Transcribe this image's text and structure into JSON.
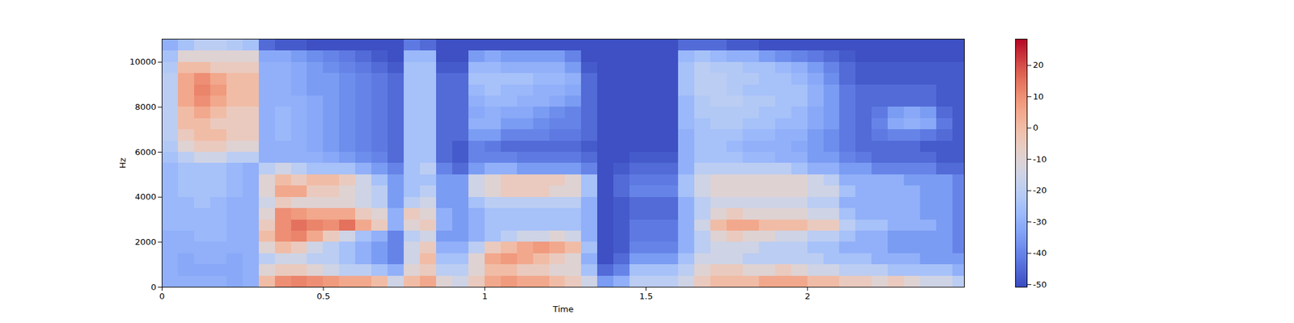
{
  "chart_data": {
    "type": "heatmap",
    "x_label": "Time",
    "y_label": "Hz",
    "xlim": [
      0,
      2.486
    ],
    "ylim": [
      0,
      11025
    ],
    "xticks": [
      0,
      0.5,
      1,
      1.5,
      2
    ],
    "yticks": [
      0,
      2000,
      4000,
      6000,
      8000,
      10000
    ],
    "x": [
      0,
      0.05,
      0.1,
      0.15,
      0.2,
      0.25,
      0.3,
      0.35,
      0.4,
      0.45,
      0.5,
      0.55,
      0.6,
      0.65,
      0.7,
      0.75,
      0.8,
      0.85,
      0.9,
      0.95,
      1,
      1.05,
      1.1,
      1.15,
      1.2,
      1.25,
      1.3,
      1.35,
      1.4,
      1.45,
      1.5,
      1.55,
      1.6,
      1.65,
      1.7,
      1.75,
      1.8,
      1.85,
      1.9,
      1.95,
      2,
      2.05,
      2.1,
      2.15,
      2.2,
      2.25,
      2.3,
      2.35,
      2.4,
      2.45
    ],
    "y": [
      0,
      500,
      1000,
      1500,
      2000,
      2500,
      3000,
      3500,
      4000,
      4500,
      5000,
      5500,
      6000,
      6500,
      7000,
      7500,
      8000,
      8500,
      9000,
      9500,
      10000,
      10500
    ],
    "values": [
      [
        -30,
        -30,
        -30,
        -30,
        -32,
        -30,
        0,
        10,
        12,
        10,
        8,
        5,
        5,
        0,
        -15,
        0,
        5,
        -10,
        -15,
        -5,
        5,
        8,
        5,
        5,
        0,
        -5,
        -15,
        -35,
        -30,
        -20,
        -20,
        -20,
        -15,
        -5,
        0,
        0,
        0,
        5,
        5,
        5,
        0,
        0,
        -5,
        -5,
        -10,
        -5,
        -10,
        -15,
        -15,
        -20
      ],
      [
        -30,
        -32,
        -32,
        -32,
        -32,
        -30,
        -10,
        -5,
        -5,
        -10,
        -15,
        -20,
        -20,
        -25,
        -30,
        -10,
        -5,
        -20,
        -20,
        -10,
        0,
        0,
        -5,
        -5,
        -10,
        -10,
        -25,
        -45,
        -40,
        -25,
        -25,
        -25,
        -20,
        -10,
        -5,
        -5,
        -10,
        -10,
        -5,
        -10,
        -15,
        -15,
        -20,
        -20,
        -20,
        -25,
        -25,
        -25,
        -25,
        -30
      ],
      [
        -30,
        -32,
        -30,
        -30,
        -32,
        -30,
        -20,
        -15,
        -15,
        -20,
        -20,
        -25,
        -30,
        -35,
        -40,
        -15,
        0,
        -25,
        -25,
        -10,
        5,
        8,
        5,
        0,
        -5,
        -10,
        -30,
        -50,
        -45,
        -35,
        -35,
        -35,
        -25,
        -15,
        -15,
        -15,
        -20,
        -20,
        -20,
        -20,
        -20,
        -25,
        -25,
        -25,
        -30,
        -30,
        -30,
        -35,
        -35,
        -35
      ],
      [
        -30,
        -30,
        -30,
        -30,
        -30,
        -30,
        -10,
        0,
        -5,
        -15,
        -20,
        -25,
        -30,
        -35,
        -40,
        -15,
        -5,
        -30,
        -30,
        -20,
        -5,
        0,
        5,
        8,
        5,
        0,
        -25,
        -50,
        -48,
        -40,
        -40,
        -40,
        -30,
        -20,
        -15,
        -15,
        -15,
        -20,
        -20,
        -20,
        -25,
        -25,
        -30,
        -30,
        -30,
        -35,
        -35,
        -35,
        -35,
        -40
      ],
      [
        -30,
        -30,
        -28,
        -28,
        -30,
        -30,
        0,
        10,
        12,
        5,
        -5,
        -15,
        -25,
        -30,
        -40,
        -20,
        -15,
        -35,
        -35,
        -30,
        -25,
        -20,
        -15,
        -15,
        -10,
        -15,
        -30,
        -50,
        -48,
        -42,
        -42,
        -42,
        -30,
        -20,
        -10,
        -5,
        -10,
        -10,
        -15,
        -15,
        -20,
        -20,
        -25,
        -30,
        -30,
        -35,
        -35,
        -35,
        -35,
        -40
      ],
      [
        -28,
        -28,
        -28,
        -28,
        -30,
        -30,
        -5,
        10,
        15,
        12,
        10,
        15,
        5,
        -5,
        -30,
        -10,
        -5,
        -30,
        -35,
        -30,
        -25,
        -25,
        -25,
        -25,
        -25,
        -25,
        -30,
        -50,
        -48,
        -42,
        -42,
        -42,
        -30,
        -15,
        0,
        5,
        5,
        0,
        0,
        0,
        -5,
        -5,
        -20,
        -25,
        -25,
        -30,
        -30,
        -30,
        -35,
        -40
      ],
      [
        -28,
        -28,
        -28,
        -28,
        -30,
        -30,
        -10,
        10,
        8,
        5,
        5,
        5,
        -5,
        -10,
        -30,
        -5,
        -10,
        -30,
        -35,
        -30,
        -25,
        -25,
        -25,
        -25,
        -25,
        -25,
        -30,
        -50,
        -48,
        -45,
        -45,
        -45,
        -30,
        -20,
        -10,
        -5,
        -10,
        -10,
        -10,
        -10,
        -15,
        -15,
        -25,
        -30,
        -30,
        -30,
        -30,
        -35,
        -35,
        -40
      ],
      [
        -28,
        -28,
        -25,
        -28,
        -30,
        -30,
        -15,
        -5,
        -10,
        -10,
        -10,
        -10,
        -15,
        -20,
        -35,
        -20,
        -15,
        -35,
        -35,
        -25,
        -20,
        -20,
        -20,
        -20,
        -20,
        -20,
        -30,
        -50,
        -48,
        -45,
        -45,
        -45,
        -30,
        -20,
        -15,
        -15,
        -15,
        -15,
        -15,
        -15,
        -20,
        -20,
        -30,
        -30,
        -30,
        -30,
        -30,
        -35,
        -35,
        -40
      ],
      [
        -28,
        -25,
        -25,
        -25,
        -28,
        -30,
        -10,
        5,
        5,
        -5,
        -5,
        -10,
        -15,
        -20,
        -35,
        -25,
        -20,
        -35,
        -35,
        -15,
        -10,
        -5,
        -5,
        -5,
        -10,
        -10,
        -25,
        -50,
        -45,
        -40,
        -40,
        -40,
        -25,
        -15,
        -10,
        -10,
        -10,
        -10,
        -10,
        -10,
        -15,
        -15,
        -25,
        -30,
        -30,
        -30,
        -30,
        -35,
        -35,
        -40
      ],
      [
        -28,
        -25,
        -25,
        -25,
        -28,
        -30,
        -10,
        0,
        -5,
        0,
        0,
        -5,
        -15,
        -25,
        -35,
        -25,
        -25,
        -35,
        -35,
        -15,
        -10,
        -5,
        -5,
        -5,
        -5,
        -10,
        -25,
        -50,
        -45,
        -42,
        -42,
        -42,
        -25,
        -15,
        -10,
        -10,
        -10,
        -10,
        -10,
        -10,
        -15,
        -20,
        -30,
        -30,
        -30,
        -30,
        -35,
        -35,
        -35,
        -40
      ],
      [
        -28,
        -25,
        -25,
        -25,
        -28,
        -30,
        -20,
        -15,
        -20,
        -25,
        -25,
        -25,
        -30,
        -35,
        -40,
        -25,
        -20,
        -40,
        -45,
        -35,
        -30,
        -30,
        -35,
        -35,
        -35,
        -35,
        -40,
        -50,
        -48,
        -45,
        -45,
        -45,
        -30,
        -20,
        -20,
        -20,
        -20,
        -20,
        -20,
        -25,
        -30,
        -30,
        -35,
        -35,
        -40,
        -40,
        -40,
        -40,
        -45,
        -45
      ],
      [
        -25,
        -20,
        -15,
        -15,
        -20,
        -20,
        -30,
        -30,
        -30,
        -30,
        -32,
        -35,
        -38,
        -40,
        -45,
        -25,
        -25,
        -45,
        -48,
        -40,
        -40,
        -40,
        -42,
        -42,
        -42,
        -42,
        -45,
        -50,
        -50,
        -48,
        -48,
        -48,
        -30,
        -25,
        -25,
        -25,
        -28,
        -28,
        -30,
        -30,
        -35,
        -35,
        -40,
        -42,
        -45,
        -45,
        -45,
        -45,
        -48,
        -48
      ],
      [
        -22,
        -10,
        -5,
        -5,
        -10,
        -10,
        -30,
        -30,
        -30,
        -32,
        -35,
        -38,
        -40,
        -42,
        -45,
        -25,
        -25,
        -45,
        -48,
        -40,
        -42,
        -45,
        -45,
        -45,
        -45,
        -45,
        -48,
        -50,
        -50,
        -50,
        -50,
        -50,
        -30,
        -25,
        -25,
        -28,
        -30,
        -30,
        -30,
        -32,
        -35,
        -38,
        -42,
        -45,
        -45,
        -45,
        -45,
        -48,
        -48,
        -48
      ],
      [
        -20,
        -5,
        0,
        0,
        -5,
        -5,
        -30,
        -28,
        -30,
        -32,
        -35,
        -38,
        -40,
        -42,
        -45,
        -25,
        -25,
        -45,
        -45,
        -35,
        -35,
        -40,
        -40,
        -40,
        -42,
        -42,
        -45,
        -50,
        -50,
        -50,
        -50,
        -50,
        -30,
        -25,
        -25,
        -25,
        -28,
        -28,
        -30,
        -30,
        -35,
        -38,
        -42,
        -45,
        -42,
        -40,
        -40,
        -42,
        -45,
        -48
      ],
      [
        -20,
        0,
        0,
        -5,
        -5,
        -5,
        -30,
        -28,
        -30,
        -32,
        -35,
        -38,
        -40,
        -42,
        -45,
        -25,
        -25,
        -45,
        -45,
        -30,
        -30,
        -35,
        -35,
        -38,
        -40,
        -40,
        -45,
        -50,
        -50,
        -50,
        -50,
        -50,
        -28,
        -25,
        -22,
        -22,
        -25,
        -25,
        -28,
        -28,
        -32,
        -35,
        -42,
        -45,
        -40,
        -32,
        -30,
        -32,
        -42,
        -48
      ],
      [
        -20,
        0,
        5,
        0,
        -5,
        -5,
        -30,
        -28,
        -30,
        -32,
        -35,
        -38,
        -40,
        -42,
        -45,
        -25,
        -25,
        -45,
        -45,
        -32,
        -30,
        -32,
        -32,
        -35,
        -38,
        -40,
        -45,
        -50,
        -50,
        -50,
        -50,
        -50,
        -28,
        -22,
        -22,
        -22,
        -22,
        -25,
        -25,
        -28,
        -32,
        -35,
        -42,
        -45,
        -42,
        -35,
        -32,
        -35,
        -45,
        -48
      ],
      [
        -20,
        5,
        10,
        5,
        0,
        0,
        -30,
        -30,
        -30,
        -32,
        -35,
        -38,
        -40,
        -42,
        -45,
        -25,
        -25,
        -45,
        -45,
        -30,
        -28,
        -28,
        -30,
        -30,
        -32,
        -35,
        -45,
        -50,
        -50,
        -50,
        -50,
        -50,
        -28,
        -22,
        -20,
        -20,
        -22,
        -22,
        -25,
        -25,
        -30,
        -35,
        -42,
        -45,
        -45,
        -45,
        -45,
        -45,
        -48,
        -48
      ],
      [
        -20,
        5,
        12,
        8,
        0,
        0,
        -30,
        -30,
        -32,
        -35,
        -35,
        -38,
        -40,
        -42,
        -45,
        -25,
        -25,
        -45,
        -45,
        -28,
        -25,
        -28,
        -28,
        -30,
        -30,
        -32,
        -45,
        -50,
        -50,
        -50,
        -50,
        -50,
        -25,
        -20,
        -20,
        -22,
        -25,
        -25,
        -25,
        -25,
        -30,
        -35,
        -42,
        -45,
        -45,
        -45,
        -45,
        -45,
        -48,
        -48
      ],
      [
        -20,
        5,
        10,
        5,
        0,
        0,
        -30,
        -30,
        -32,
        -35,
        -35,
        -38,
        -40,
        -42,
        -45,
        -25,
        -25,
        -45,
        -45,
        -25,
        -25,
        -25,
        -25,
        -28,
        -28,
        -30,
        -45,
        -50,
        -50,
        -50,
        -50,
        -50,
        -25,
        -20,
        -20,
        -22,
        -22,
        -25,
        -25,
        -28,
        -32,
        -38,
        -45,
        -48,
        -48,
        -48,
        -48,
        -48,
        -48,
        -48
      ],
      [
        -22,
        0,
        0,
        -5,
        -5,
        -5,
        -30,
        -30,
        -32,
        -35,
        -38,
        -40,
        -42,
        -45,
        -48,
        -25,
        -25,
        -48,
        -48,
        -28,
        -28,
        -30,
        -30,
        -30,
        -30,
        -35,
        -48,
        -50,
        -50,
        -50,
        -50,
        -50,
        -25,
        -20,
        -22,
        -22,
        -25,
        -25,
        -28,
        -30,
        -35,
        -40,
        -45,
        -48,
        -48,
        -48,
        -48,
        -48,
        -48,
        -48
      ],
      [
        -25,
        -10,
        -10,
        -10,
        -10,
        -10,
        -32,
        -32,
        -35,
        -38,
        -40,
        -42,
        -45,
        -48,
        -50,
        -28,
        -28,
        -50,
        -50,
        -35,
        -32,
        -35,
        -35,
        -35,
        -35,
        -40,
        -50,
        -50,
        -50,
        -50,
        -50,
        -50,
        -28,
        -25,
        -28,
        -30,
        -30,
        -35,
        -38,
        -40,
        -42,
        -45,
        -48,
        -50,
        -50,
        -50,
        -50,
        -50,
        -50,
        -50
      ],
      [
        -30,
        -25,
        -20,
        -20,
        -22,
        -25,
        -45,
        -48,
        -48,
        -50,
        -50,
        -50,
        -50,
        -50,
        -50,
        -42,
        -45,
        -50,
        -50,
        -50,
        -50,
        -50,
        -50,
        -50,
        -50,
        -50,
        -50,
        -50,
        -50,
        -50,
        -50,
        -50,
        -45,
        -45,
        -45,
        -48,
        -48,
        -50,
        -50,
        -50,
        -50,
        -50,
        -50,
        -50,
        -50,
        -50,
        -50,
        -50,
        -50,
        -50
      ]
    ],
    "colorbar": {
      "range": [
        -50.8,
        28.4
      ],
      "ticks": [
        -50,
        -40,
        -30,
        -20,
        -10,
        0,
        10,
        20
      ]
    }
  }
}
